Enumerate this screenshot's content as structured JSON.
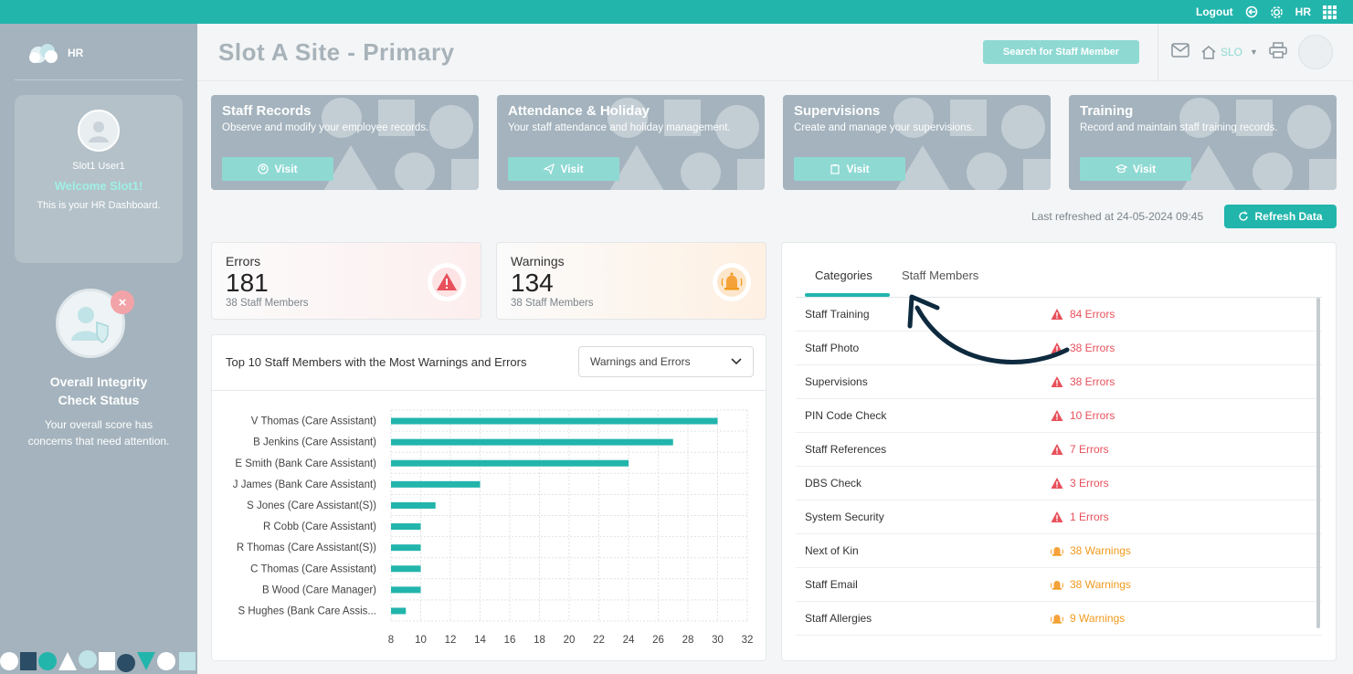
{
  "topbar": {
    "logout_label": "Logout",
    "user_label": "HR"
  },
  "sidebar": {
    "brand": "HR",
    "user_name": "Slot1 User1",
    "welcome": "Welcome Slot1!",
    "subtitle": "This is your HR Dashboard.",
    "integrity_title_1": "Overall Integrity",
    "integrity_title_2": "Check Status",
    "integrity_desc_1": "Your overall score has",
    "integrity_desc_2": "concerns that need attention."
  },
  "header": {
    "title": "Slot A Site - Primary",
    "search_label": "Search for Staff Member",
    "site_label": "SLO"
  },
  "modules": [
    {
      "title": "Staff Records",
      "desc": "Observe and modify your employee records.",
      "button": "Visit"
    },
    {
      "title": "Attendance & Holiday",
      "desc": "Your staff attendance and holiday management.",
      "button": "Visit"
    },
    {
      "title": "Supervisions",
      "desc": "Create and manage your supervisions.",
      "button": "Visit"
    },
    {
      "title": "Training",
      "desc": "Record and maintain staff training records.",
      "button": "Visit"
    }
  ],
  "refresh": {
    "last_refreshed": "Last refreshed at 24-05-2024 09:45",
    "button": "Refresh Data"
  },
  "stats": {
    "errors": {
      "label": "Errors",
      "value": "181",
      "sub": "38 Staff Members"
    },
    "warnings": {
      "label": "Warnings",
      "value": "134",
      "sub": "38 Staff Members"
    }
  },
  "chart_panel": {
    "title": "Top 10 Staff Members with the Most Warnings and Errors",
    "select_value": "Warnings and Errors"
  },
  "chart_data": {
    "type": "bar",
    "orientation": "horizontal",
    "categories": [
      "V Thomas (Care Assistant)",
      "B Jenkins (Care Assistant)",
      "E Smith (Bank Care Assistant)",
      "J James (Bank Care Assistant)",
      "S Jones (Care Assistant(S))",
      "R Cobb (Care Assistant)",
      "R Thomas (Care Assistant(S))",
      "C Thomas (Care Assistant)",
      "B Wood (Care Manager)",
      "S Hughes (Bank Care Assis..."
    ],
    "values": [
      30,
      27,
      24,
      14,
      11,
      10,
      10,
      10,
      10,
      9
    ],
    "xlim": [
      8,
      32
    ],
    "xticks": [
      "8",
      "10",
      "12",
      "14",
      "16",
      "18",
      "20",
      "22",
      "24",
      "26",
      "28",
      "30",
      "32"
    ],
    "grid": true,
    "bar_color": "#22b5ac"
  },
  "categories_panel": {
    "tabs": [
      {
        "label": "Categories"
      },
      {
        "label": "Staff Members"
      }
    ],
    "rows": [
      {
        "name": "Staff Training",
        "value": "84 Errors",
        "kind": "error"
      },
      {
        "name": "Staff Photo",
        "value": "38 Errors",
        "kind": "error"
      },
      {
        "name": "Supervisions",
        "value": "38 Errors",
        "kind": "error"
      },
      {
        "name": "PIN Code Check",
        "value": "10 Errors",
        "kind": "error"
      },
      {
        "name": "Staff References",
        "value": "7 Errors",
        "kind": "error"
      },
      {
        "name": "DBS Check",
        "value": "3 Errors",
        "kind": "error"
      },
      {
        "name": "System Security",
        "value": "1 Errors",
        "kind": "error"
      },
      {
        "name": "Next of Kin",
        "value": "38 Warnings",
        "kind": "warning"
      },
      {
        "name": "Staff Email",
        "value": "38 Warnings",
        "kind": "warning"
      },
      {
        "name": "Staff Allergies",
        "value": "9 Warnings",
        "kind": "warning"
      }
    ]
  },
  "colors": {
    "accent": "#22b5ac",
    "sidebar": "#a4b3bd",
    "error": "#e8505b",
    "warning": "#f19a1d",
    "arrow": "#0e2a3f"
  }
}
